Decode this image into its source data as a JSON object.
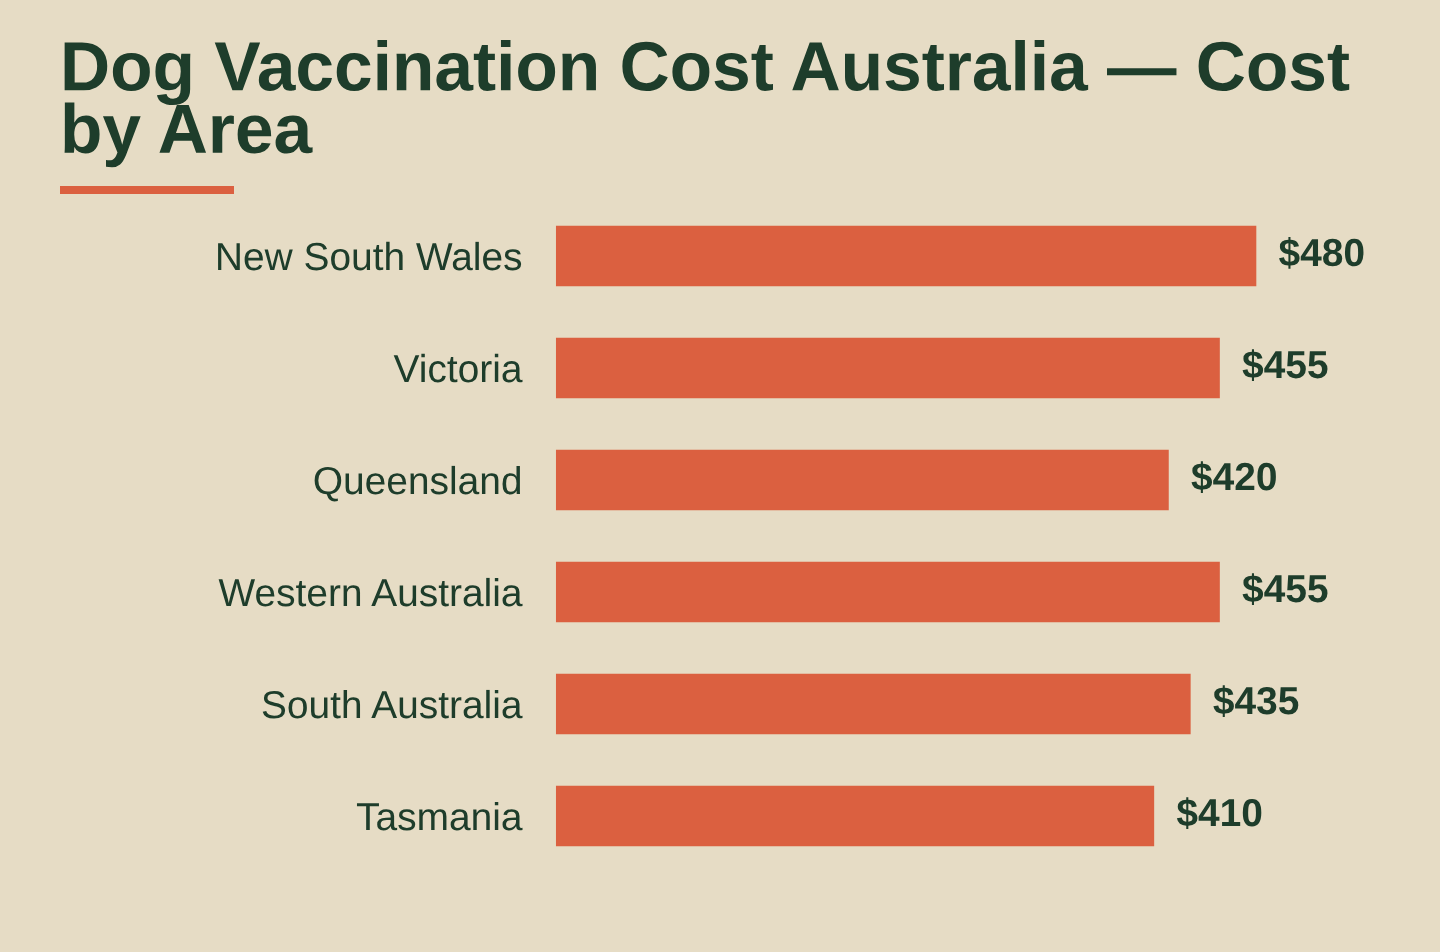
{
  "chart_data": {
    "type": "bar",
    "orientation": "horizontal",
    "title": "Dog Vaccination Cost Australia — Cost by Area",
    "categories": [
      "New South Wales",
      "Victoria",
      "Queensland",
      "Western Australia",
      "South Australia",
      "Tasmania"
    ],
    "values": [
      480,
      455,
      420,
      455,
      435,
      410
    ],
    "value_labels": [
      "$480",
      "$455",
      "$420",
      "$455",
      "$435",
      "$410"
    ],
    "color": "#db6040",
    "grid": false,
    "legend": false
  }
}
